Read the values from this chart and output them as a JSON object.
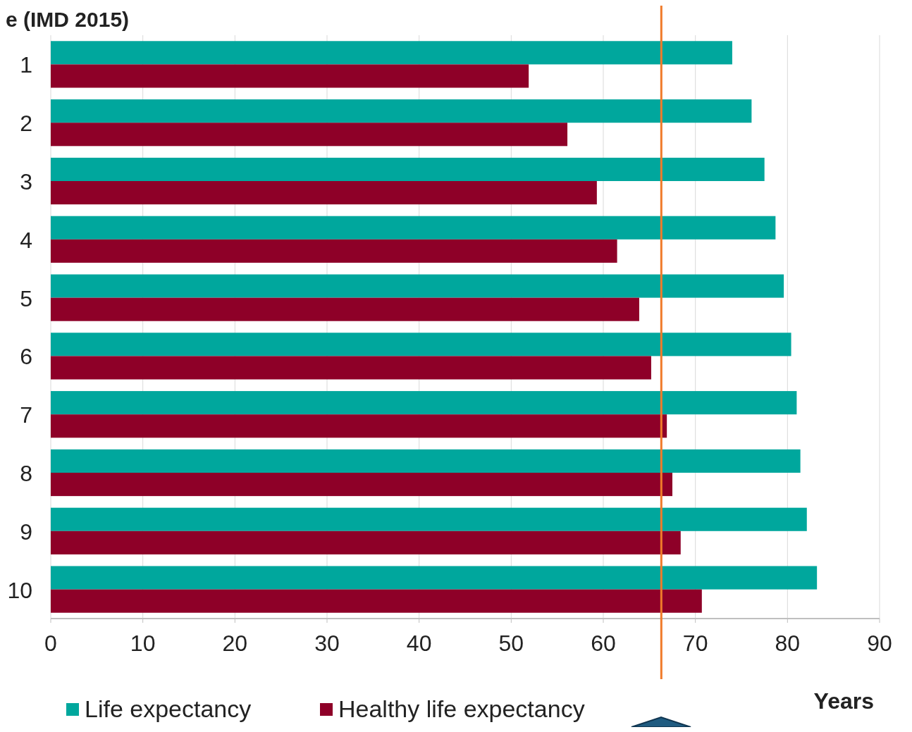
{
  "chart_data": {
    "type": "bar",
    "orientation": "horizontal",
    "title": "e (IMD 2015)",
    "xlabel": "Years",
    "categories": [
      "1",
      "2",
      "3",
      "4",
      "5",
      "6",
      "7",
      "8",
      "9",
      "10"
    ],
    "series": [
      {
        "name": "Life expectancy",
        "color": "#00a79d",
        "values": [
          74.0,
          76.1,
          77.5,
          78.7,
          79.6,
          80.4,
          81.0,
          81.4,
          82.1,
          83.2
        ]
      },
      {
        "name": "Healthy life expectancy",
        "color": "#8e0028",
        "values": [
          51.9,
          56.1,
          59.3,
          61.5,
          63.9,
          65.2,
          66.9,
          67.5,
          68.4,
          70.7
        ]
      }
    ],
    "xlim": [
      0,
      90
    ],
    "xticks": [
      0,
      10,
      20,
      30,
      40,
      50,
      60,
      70,
      80,
      90
    ],
    "grid": "x",
    "legend": "bottom left",
    "ref_lines": [
      {
        "axis": "x",
        "value": 66.3,
        "color": "#f07b2a"
      }
    ]
  }
}
